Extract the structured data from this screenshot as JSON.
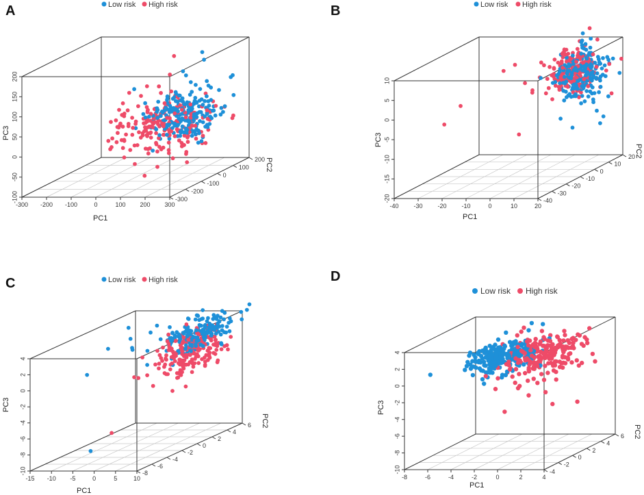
{
  "legend": {
    "low_label": "Low risk",
    "high_label": "High risk"
  },
  "colors": {
    "low": "#1e90d8",
    "high": "#ee4b68",
    "frame": "#333333",
    "grid": "#c8c8c8"
  },
  "chart_data": [
    {
      "id": "A",
      "type": "scatter",
      "letter": "A",
      "xlabel": "PC1",
      "ylabel": "PC2",
      "zlabel": "PC3",
      "xticks": [
        "-300",
        "-200",
        "-100",
        "0",
        "100",
        "200",
        "300"
      ],
      "yticks": [
        "-300",
        "-200",
        "-100",
        "0",
        "100",
        "200"
      ],
      "zticks": [
        "-100",
        "-50",
        "0",
        "50",
        "100",
        "150",
        "200"
      ],
      "xlim": [
        -300,
        300
      ],
      "ylim": [
        -300,
        200
      ],
      "zlim": [
        -100,
        200
      ],
      "series": [
        {
          "name": "Low risk",
          "center": [
            180,
            -20,
            50
          ],
          "spread": [
            60,
            70,
            28
          ],
          "count": 220,
          "extra": [
            [
              200,
              60,
              190
            ],
            [
              220,
              40,
              175
            ],
            [
              180,
              -30,
              160
            ],
            [
              160,
              20,
              140
            ],
            [
              230,
              0,
              110
            ],
            [
              250,
              10,
              90
            ],
            [
              60,
              -80,
              55
            ],
            [
              290,
              -50,
              60
            ]
          ]
        },
        {
          "name": "High risk",
          "center": [
            110,
            -60,
            30
          ],
          "spread": [
            90,
            80,
            35
          ],
          "count": 200,
          "extra": [
            [
              150,
              -40,
              200
            ],
            [
              120,
              -20,
              150
            ],
            [
              300,
              -10,
              70
            ],
            [
              310,
              30,
              60
            ],
            [
              40,
              -100,
              -10
            ],
            [
              200,
              -150,
              -20
            ]
          ]
        }
      ]
    },
    {
      "id": "B",
      "type": "scatter",
      "letter": "B",
      "xlabel": "PC1",
      "ylabel": "PC2",
      "zlabel": "PC3",
      "xticks": [
        "-40",
        "-30",
        "-20",
        "-10",
        "0",
        "10",
        "20"
      ],
      "yticks": [
        "-40",
        "-30",
        "-20",
        "-10",
        "0",
        "10",
        "20"
      ],
      "zticks": [
        "-20",
        "-15",
        "-10",
        "-5",
        "0",
        "5",
        "10"
      ],
      "xlim": [
        -40,
        20
      ],
      "ylim": [
        -40,
        20
      ],
      "zlim": [
        -20,
        10
      ],
      "series": [
        {
          "name": "Low risk",
          "center": [
            14,
            0,
            4
          ],
          "spread": [
            4,
            5,
            3
          ],
          "count": 200,
          "extra": [
            [
              18,
              5,
              -6
            ],
            [
              19,
              8,
              -8
            ],
            [
              12,
              -2,
              -9
            ],
            [
              16,
              6,
              -4
            ],
            [
              20,
              4,
              -9
            ],
            [
              15,
              -1,
              -3
            ]
          ]
        },
        {
          "name": "High risk",
          "center": [
            10,
            2,
            5
          ],
          "spread": [
            5,
            5,
            3
          ],
          "count": 200,
          "extra": [
            [
              -15,
              -5,
              6
            ],
            [
              -12,
              -2,
              7
            ],
            [
              -30,
              -10,
              -2
            ],
            [
              -25,
              -30,
              -3
            ],
            [
              -8,
              -6,
              -10
            ],
            [
              0,
              -10,
              2
            ]
          ]
        }
      ]
    },
    {
      "id": "C",
      "type": "scatter",
      "letter": "C",
      "xlabel": "PC1",
      "ylabel": "PC2",
      "zlabel": "PC3",
      "xticks": [
        "-15",
        "-10",
        "-5",
        "0",
        "5",
        "10"
      ],
      "yticks": [
        "-8",
        "-6",
        "-4",
        "-2",
        "0",
        "2",
        "4",
        "6"
      ],
      "zticks": [
        "-10",
        "-8",
        "-6",
        "-4",
        "-2",
        "0",
        "2",
        "4"
      ],
      "xlim": [
        -15,
        10
      ],
      "ylim": [
        -10,
        6
      ],
      "zlim": [
        -10,
        4
      ],
      "series": [
        {
          "name": "Low risk",
          "center": [
            6,
            2,
            2.8
          ],
          "spread": [
            1.8,
            2.2,
            0.9
          ],
          "count": 200,
          "extra": [
            [
              -12,
              3,
              3
            ],
            [
              -10,
              2,
              2
            ],
            [
              -8,
              1,
              1
            ],
            [
              -5,
              -1,
              2
            ],
            [
              -14,
              -2,
              -1
            ],
            [
              -3,
              0,
              -0.5
            ],
            [
              -6,
              -4,
              3
            ],
            [
              -7,
              -6,
              -9
            ]
          ]
        },
        {
          "name": "High risk",
          "center": [
            7,
            0,
            1.2
          ],
          "spread": [
            1.8,
            2.5,
            1.2
          ],
          "count": 200,
          "extra": [
            [
              3,
              -3,
              -2
            ],
            [
              6,
              -2,
              -3
            ],
            [
              1,
              -8,
              -6
            ],
            [
              9,
              1,
              -1
            ]
          ]
        }
      ]
    },
    {
      "id": "D",
      "type": "scatter",
      "letter": "D",
      "xlabel": "PC1",
      "ylabel": "PC2",
      "zlabel": "PC3",
      "xticks": [
        "-8",
        "-6",
        "-4",
        "-2",
        "0",
        "2",
        "4"
      ],
      "yticks": [
        "-4",
        "-2",
        "0",
        "2",
        "4",
        "6"
      ],
      "zticks": [
        "-10",
        "-8",
        "-6",
        "-4",
        "-2",
        "0",
        "2",
        "4"
      ],
      "xlim": [
        -8,
        4
      ],
      "ylim": [
        -4,
        6
      ],
      "zlim": [
        -10,
        4
      ],
      "series": [
        {
          "name": "Low risk",
          "center": [
            -2,
            0,
            1.8
          ],
          "spread": [
            1.2,
            1.5,
            0.9
          ],
          "count": 220,
          "extra": [
            [
              -6,
              2,
              0
            ],
            [
              -5.5,
              1,
              1.5
            ],
            [
              -7,
              -2,
              0.5
            ],
            [
              -1,
              4,
              4
            ],
            [
              -3,
              -1,
              -1
            ]
          ]
        },
        {
          "name": "High risk",
          "center": [
            1,
            0.5,
            1.8
          ],
          "spread": [
            1.5,
            1.8,
            1.1
          ],
          "count": 220,
          "extra": [
            [
              4,
              2,
              3
            ],
            [
              3,
              4,
              3.5
            ],
            [
              3.5,
              -2,
              -3
            ],
            [
              0,
              -3,
              -3.5
            ],
            [
              2,
              5,
              2
            ],
            [
              3.8,
              1,
              -4
            ]
          ]
        }
      ]
    }
  ]
}
